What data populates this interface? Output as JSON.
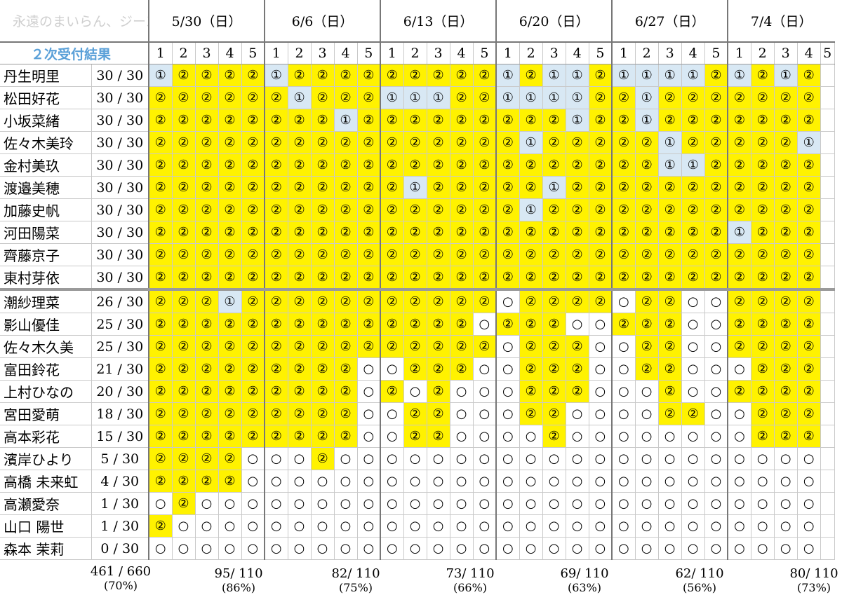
{
  "watermark": "永遠のまいらん、ジーン",
  "label": "２次受付結果",
  "dates": [
    "5/30（日）",
    "6/6（日）",
    "6/13（日）",
    "6/20（日）",
    "6/27（日）",
    "7/4（日）"
  ],
  "slot_numbers": [
    "1",
    "2",
    "3",
    "4",
    "5"
  ],
  "last_column_partial_label": "5",
  "symbols": {
    "y": "②",
    "b": "①",
    "e": "○"
  },
  "cell_colors": {
    "y": "#fff200",
    "b": "#d8e8f4",
    "e": "#ffffff"
  },
  "members": [
    {
      "name": "丹生明里",
      "count": "30 / 30",
      "cells": "byyyybyyyyyyyyybybbybbbbybyby"
    },
    {
      "name": "松田好花",
      "count": "30 / 30",
      "cells": "yyyyyybyyybbbyybbbbyybyyyyyyy"
    },
    {
      "name": "小坂菜緒",
      "count": "30 / 30",
      "cells": "yyyyyyyybyyyyyyyyybyybyyyyyyy"
    },
    {
      "name": "佐々木美玲",
      "count": "30 / 30",
      "cells": "yyyyyyyyyyyyyyyybyyyyybyyyyyb"
    },
    {
      "name": "金村美玖",
      "count": "30 / 30",
      "cells": "yyyyyyyyyyyyyyyyyyyyyybbyyyyy"
    },
    {
      "name": "渡邉美穂",
      "count": "30 / 30",
      "cells": "yyyyyyyyyyybyyyyybyyyyyyyyyyy"
    },
    {
      "name": "加藤史帆",
      "count": "30 / 30",
      "cells": "yyyyyyyyyyyyyyyybyyyyyyyyyyyy"
    },
    {
      "name": "河田陽菜",
      "count": "30 / 30",
      "cells": "yyyyyyyyyyyyyyyyyyyyyyyyybyyy"
    },
    {
      "name": "齊藤京子",
      "count": "30 / 30",
      "cells": "yyyyyyyyyyyyyyyyyyyyyyyyyyyyy"
    },
    {
      "name": "東村芽依",
      "count": "30 / 30",
      "cells": "yyyyyyyyyyyyyyyyyyyyyyyyyyyyy"
    },
    {
      "name": "潮紗理菜",
      "count": "26 / 30",
      "cells": "yyybyyyyyyyyyyyeyyyyeyyeeyyyy"
    },
    {
      "name": "影山優佳",
      "count": "25 / 30",
      "cells": "yyyyyyyyyyyyyyeyyyeeyyyeeyyyy"
    },
    {
      "name": "佐々木久美",
      "count": "25 / 30",
      "cells": "yyyyyyyyyyyyyyyeyyyeeyyeeyyyy"
    },
    {
      "name": "富田鈴花",
      "count": "21 / 30",
      "cells": "yyyyyyyyyeeyyyeeyyyeeyyeeeyyy"
    },
    {
      "name": "上村ひなの",
      "count": "20 / 30",
      "cells": "yyyyyyyyyeyeyeeeyyyeeeyeeyyyy"
    },
    {
      "name": "宮田愛萌",
      "count": "18 / 30",
      "cells": "yyyyyyyyyeeyyeeeyyeeeeyyeeyyy"
    },
    {
      "name": "高本彩花",
      "count": "15 / 30",
      "cells": "yyyyyyyyyeeyyeeeeyeeeeeeeeyyy"
    },
    {
      "name": "濱岸ひより",
      "count": "5 / 30",
      "cells": "yyyyeeeyeeeeeeeeeeeeeeeeeeeee"
    },
    {
      "name": "高橋 未来虹",
      "count": "4 / 30",
      "cells": "yyyyeeeeeeeeeeeeeeeeeeeeeeeee"
    },
    {
      "name": "高瀬愛奈",
      "count": "1 / 30",
      "cells": "eyeeeeeeeeeeeeeeeeeeeeeeeeeee"
    },
    {
      "name": "山口 陽世",
      "count": "1 / 30",
      "cells": "yeeeeeeeeeeeeeeeeeeeeeeeeeeee"
    },
    {
      "name": "森本 茉莉",
      "count": "0 / 30",
      "cells": "eeeeeeeeeeeeeeeeeeeeeeeeeeeee"
    }
  ],
  "overall_total": {
    "value": "461 / 660",
    "pct": "(70%)"
  },
  "totals": [
    {
      "value": "95/ 110",
      "pct": "(86%)"
    },
    {
      "value": "82/ 110",
      "pct": "(75%)"
    },
    {
      "value": "73/ 110",
      "pct": "(66%)"
    },
    {
      "value": "69/ 110",
      "pct": "(63%)"
    },
    {
      "value": "62/ 110",
      "pct": "(56%)"
    },
    {
      "value": "80/ 110",
      "pct": "(73%)"
    }
  ]
}
